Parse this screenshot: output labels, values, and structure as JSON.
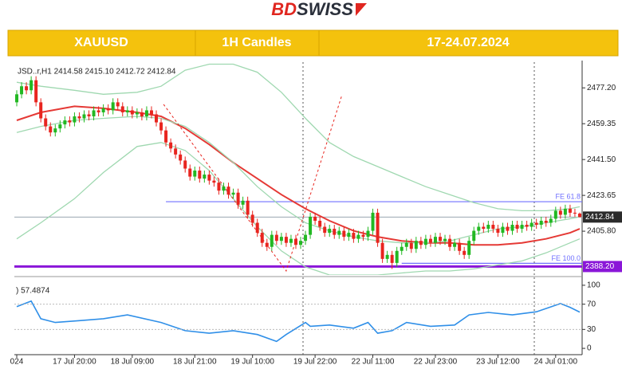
{
  "logo": {
    "part1": "BD",
    "part2": "SWISS"
  },
  "banner": {
    "symbol": "XAUUSD",
    "timeframe": "1H Candles",
    "dates": "17-24.07.2024"
  },
  "chart_data": {
    "type": "candlestick",
    "info": "JSD..r,H1  2414.58 2415.10 2412.72 2412.84",
    "up_color": "#22b822",
    "down_color": "#e8251f",
    "categories": [
      "024",
      null,
      null,
      null,
      null,
      null,
      null,
      null,
      null,
      null,
      null,
      null,
      "17 Jul 20:00",
      null,
      null,
      null,
      null,
      null,
      null,
      null,
      null,
      null,
      null,
      null,
      "18 Jul 09:00",
      null,
      null,
      null,
      null,
      null,
      null,
      null,
      null,
      null,
      null,
      null,
      null,
      "18 Jul 21:00",
      null,
      null,
      null,
      null,
      null,
      null,
      null,
      null,
      null,
      null,
      null,
      "19 Jul 10:00",
      null,
      null,
      null,
      null,
      null,
      null,
      null,
      null,
      null,
      null,
      null,
      null,
      "19 Jul 22:00",
      null,
      null,
      null,
      null,
      null,
      null,
      null,
      null,
      null,
      null,
      null,
      "22 Jul 11:00",
      null,
      null,
      null,
      null,
      null,
      null,
      null,
      null,
      null,
      null,
      null,
      null,
      "22 Jul 23:00",
      null,
      null,
      null,
      null,
      null,
      null,
      null,
      null,
      null,
      null,
      null,
      null,
      "23 Jul 12:00",
      null,
      null,
      null,
      null,
      null,
      null,
      null,
      null,
      null,
      null,
      null,
      "24 Jul 01:00",
      null,
      null,
      null,
      null,
      null
    ],
    "open": [
      2470,
      2474,
      2478,
      2476,
      2481,
      2470,
      2462,
      2458,
      2455,
      2457,
      2459,
      2461,
      2460,
      2463,
      2462,
      2464,
      2463,
      2466,
      2465,
      2467,
      2466,
      2470,
      2468,
      2465,
      2466,
      2464,
      2465,
      2463,
      2466,
      2464,
      2460,
      2456,
      2450,
      2447,
      2444,
      2441,
      2437,
      2433,
      2436,
      2432,
      2434,
      2431,
      2430,
      2426,
      2428,
      2424,
      2425,
      2419,
      2421,
      2414,
      2410,
      2405,
      2400,
      2398,
      2404,
      2401,
      2403,
      2400,
      2402,
      2399,
      2401,
      2404,
      2413,
      2411,
      2408,
      2405,
      2407,
      2404,
      2406,
      2403,
      2405,
      2402,
      2404,
      2403,
      2406,
      2415,
      2400,
      2392,
      2394,
      2390,
      2396,
      2398,
      2400,
      2397,
      2401,
      2399,
      2402,
      2400,
      2403,
      2401,
      2402,
      2398,
      2400,
      2396,
      2394,
      2401,
      2406,
      2408,
      2407,
      2409,
      2407,
      2405,
      2408,
      2406,
      2409,
      2407,
      2409,
      2408,
      2410,
      2409,
      2411,
      2410,
      2412,
      2416,
      2414,
      2417,
      2415,
      2414.58
    ],
    "high": [
      2476,
      2480,
      2480,
      2483,
      2483,
      2472,
      2464,
      2460,
      2459,
      2461,
      2463,
      2463,
      2465,
      2465,
      2466,
      2466,
      2468,
      2468,
      2469,
      2469,
      2472,
      2472,
      2470,
      2468,
      2468,
      2467,
      2467,
      2468,
      2468,
      2466,
      2462,
      2458,
      2452,
      2449,
      2446,
      2443,
      2439,
      2438,
      2438,
      2436,
      2436,
      2433,
      2432,
      2430,
      2430,
      2427,
      2427,
      2423,
      2423,
      2416,
      2412,
      2407,
      2402,
      2406,
      2406,
      2405,
      2405,
      2404,
      2404,
      2403,
      2406,
      2415,
      2415,
      2413,
      2410,
      2409,
      2409,
      2408,
      2408,
      2407,
      2407,
      2406,
      2406,
      2408,
      2417,
      2417,
      2402,
      2396,
      2396,
      2398,
      2400,
      2402,
      2402,
      2403,
      2403,
      2404,
      2404,
      2405,
      2405,
      2404,
      2404,
      2402,
      2402,
      2398,
      2403,
      2408,
      2410,
      2410,
      2411,
      2411,
      2409,
      2410,
      2410,
      2411,
      2411,
      2411,
      2411,
      2412,
      2412,
      2413,
      2413,
      2414,
      2418,
      2418,
      2419,
      2419,
      2417,
      2415.1
    ],
    "low": [
      2468,
      2472,
      2474,
      2474,
      2468,
      2460,
      2456,
      2453,
      2453,
      2455,
      2457,
      2458,
      2458,
      2460,
      2460,
      2461,
      2461,
      2463,
      2463,
      2464,
      2464,
      2466,
      2463,
      2463,
      2462,
      2462,
      2461,
      2461,
      2462,
      2458,
      2454,
      2448,
      2445,
      2442,
      2439,
      2435,
      2431,
      2431,
      2430,
      2430,
      2429,
      2428,
      2424,
      2424,
      2422,
      2422,
      2417,
      2417,
      2412,
      2408,
      2403,
      2398,
      2396,
      2396,
      2399,
      2399,
      2398,
      2398,
      2397,
      2397,
      2399,
      2402,
      2409,
      2406,
      2403,
      2403,
      2402,
      2402,
      2401,
      2401,
      2400,
      2400,
      2401,
      2401,
      2404,
      2398,
      2390,
      2390,
      2387,
      2388,
      2394,
      2396,
      2395,
      2395,
      2397,
      2397,
      2398,
      2398,
      2399,
      2399,
      2396,
      2396,
      2394,
      2392,
      2392,
      2399,
      2404,
      2405,
      2405,
      2405,
      2403,
      2403,
      2404,
      2404,
      2405,
      2405,
      2406,
      2406,
      2407,
      2407,
      2408,
      2408,
      2410,
      2412,
      2412,
      2413,
      2413,
      2412.72
    ],
    "close": [
      2474,
      2478,
      2476,
      2481,
      2470,
      2462,
      2458,
      2455,
      2457,
      2459,
      2461,
      2460,
      2463,
      2462,
      2464,
      2463,
      2466,
      2465,
      2467,
      2466,
      2470,
      2468,
      2465,
      2466,
      2464,
      2465,
      2463,
      2466,
      2464,
      2460,
      2456,
      2450,
      2447,
      2444,
      2441,
      2437,
      2433,
      2436,
      2432,
      2434,
      2431,
      2430,
      2426,
      2428,
      2424,
      2425,
      2419,
      2421,
      2414,
      2410,
      2405,
      2400,
      2398,
      2404,
      2401,
      2403,
      2400,
      2402,
      2399,
      2401,
      2404,
      2413,
      2411,
      2408,
      2405,
      2407,
      2404,
      2406,
      2403,
      2405,
      2402,
      2404,
      2403,
      2406,
      2415,
      2400,
      2392,
      2394,
      2390,
      2396,
      2398,
      2400,
      2397,
      2401,
      2399,
      2402,
      2400,
      2403,
      2401,
      2402,
      2398,
      2400,
      2396,
      2394,
      2401,
      2406,
      2408,
      2407,
      2409,
      2407,
      2405,
      2408,
      2406,
      2409,
      2407,
      2409,
      2408,
      2410,
      2409,
      2411,
      2410,
      2412,
      2416,
      2414,
      2417,
      2415,
      2414.58,
      2412.84
    ],
    "ylim": [
      2384,
      2490
    ],
    "yticks": [
      {
        "value": 2477.2,
        "label": "2477.20"
      },
      {
        "value": 2459.35,
        "label": "2459.35"
      },
      {
        "value": 2441.5,
        "label": "2441.50"
      },
      {
        "value": 2423.65,
        "label": "2423.65"
      },
      {
        "value": 2405.8,
        "label": "2405.80"
      }
    ],
    "overlays": [
      {
        "color": "#e53935",
        "width": 2,
        "x": [
          0,
          5,
          12,
          18,
          25,
          30,
          35,
          40,
          45,
          50,
          55,
          60,
          65,
          70,
          75,
          80,
          85,
          90,
          95,
          100,
          105,
          110,
          115,
          117
        ],
        "values": [
          2461,
          2465,
          2468,
          2467,
          2465,
          2463,
          2457,
          2449,
          2440,
          2432,
          2424,
          2417,
          2411,
          2406,
          2403,
          2401,
          2400,
          2400,
          2399,
          2399,
          2400,
          2402,
          2405,
          2407
        ]
      },
      {
        "color": "#9fd8b0",
        "width": 1.3,
        "x": [
          0,
          5,
          12,
          18,
          25,
          30,
          35,
          40,
          45,
          50,
          55,
          60,
          65,
          70,
          75,
          80,
          85,
          90,
          95,
          100,
          105,
          110,
          115,
          117
        ],
        "values": [
          2480,
          2478,
          2476,
          2474,
          2475,
          2478,
          2486,
          2489,
          2489,
          2485,
          2475,
          2462,
          2450,
          2443,
          2438,
          2433,
          2428,
          2424,
          2420,
          2417,
          2416,
          2416,
          2417,
          2418
        ]
      },
      {
        "color": "#9fd8b0",
        "width": 1.3,
        "x": [
          0,
          5,
          12,
          18,
          25,
          30,
          35,
          40,
          45,
          50,
          55,
          60,
          65,
          70,
          75,
          80,
          85,
          90,
          95,
          100,
          105,
          110,
          115,
          117
        ],
        "values": [
          2455,
          2458,
          2461,
          2462,
          2463,
          2462,
          2458,
          2450,
          2440,
          2428,
          2418,
          2410,
          2406,
          2403,
          2401,
          2400,
          2400,
          2401,
          2404,
          2407,
          2408,
          2410,
          2412,
          2413
        ]
      },
      {
        "color": "#9fd8b0",
        "width": 1.3,
        "x": [
          0,
          5,
          12,
          18,
          25,
          30,
          35,
          40,
          45,
          50,
          55,
          60,
          65,
          70,
          75,
          80,
          85,
          90,
          95,
          100,
          105,
          110,
          115,
          117
        ],
        "values": [
          2402,
          2410,
          2422,
          2435,
          2448,
          2450,
          2446,
          2436,
          2422,
          2408,
          2396,
          2388,
          2384,
          2384,
          2384,
          2385,
          2386,
          2386,
          2387,
          2389,
          2391,
          2395,
          2400,
          2402
        ]
      }
    ],
    "fibo_path": {
      "color": "#e8251f",
      "x": [
        30.5,
        56,
        67.5
      ],
      "values": [
        2469,
        2386,
        2473
      ]
    },
    "levels": [
      {
        "label": "FE 61.8",
        "value": 2420.5,
        "color": "#7070ff",
        "from": 31
      },
      {
        "label": "FE 100.0",
        "value": 2389.8,
        "color": "#7070ff",
        "from": 80
      }
    ],
    "price_line": {
      "value": 2412.84,
      "label": "2412.84",
      "color": "#9aa4b0"
    },
    "support_line": {
      "value": 2388.2,
      "label": "2388.20",
      "color": "#8a16d8"
    },
    "rsi": {
      "title": ") 57.4874",
      "color": "#2f8fe8",
      "x": [
        0,
        3,
        5,
        8,
        13,
        18,
        23,
        30,
        35,
        40,
        45,
        50,
        54,
        56,
        60,
        61,
        65,
        70,
        73,
        75,
        78,
        81,
        86,
        91,
        94,
        98,
        103,
        108,
        113,
        115,
        117
      ],
      "values": [
        66,
        75,
        47,
        41,
        44,
        47,
        53,
        41,
        28,
        24,
        28,
        22,
        11,
        22,
        41,
        35,
        37,
        32,
        41,
        24,
        28,
        41,
        35,
        37,
        53,
        57,
        53,
        58,
        71,
        65,
        57.4874
      ],
      "ylim": [
        -10,
        110
      ],
      "yticks": [
        100,
        70,
        30,
        0
      ]
    }
  }
}
